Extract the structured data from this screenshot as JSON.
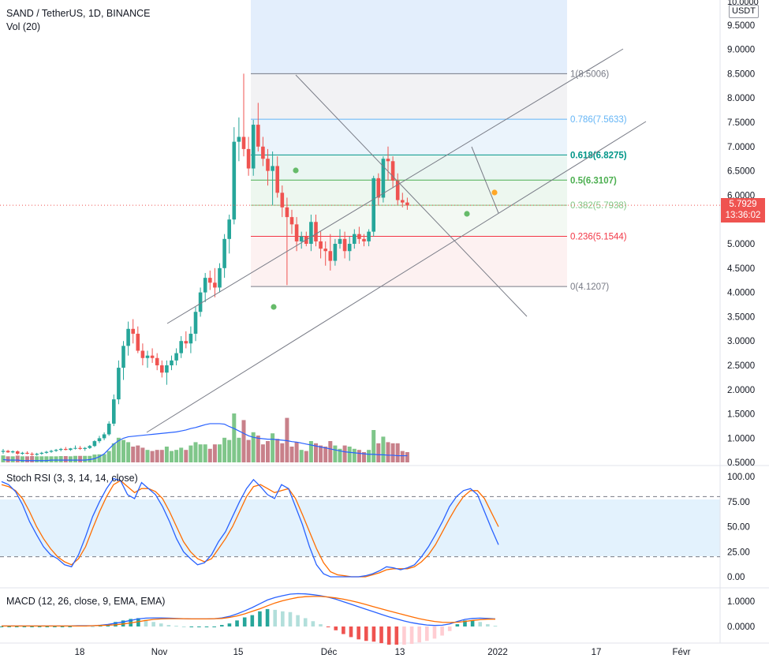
{
  "header": {
    "symbol": "SAND / TetherUS, 1D, BINANCE",
    "volume_indicator": "Vol (20)",
    "stoch_rsi_title": "Stoch RSI (3, 3, 14, 14, close)",
    "macd_title": "MACD (12, 26, close, 9, EMA, EMA)"
  },
  "price_scale": {
    "currency": "USDT",
    "top_label": "10.0000",
    "ticks": [
      "9.5000",
      "9.0000",
      "8.5000",
      "8.0000",
      "7.5000",
      "7.0000",
      "6.5000",
      "6.0000",
      "5.5000",
      "5.0000",
      "4.5000",
      "4.0000",
      "3.5000",
      "3.0000",
      "2.5000",
      "2.0000",
      "1.5000",
      "1.0000",
      "0.5000"
    ],
    "current_price": "5.7929",
    "countdown": "13:36:02"
  },
  "stoch_scale": {
    "ticks": [
      "100.00",
      "75.00",
      "50.00",
      "25.00",
      "0.00"
    ]
  },
  "macd_scale": {
    "ticks": [
      "1.0000",
      "0.0000"
    ]
  },
  "time_axis": {
    "labels": [
      "18",
      "Nov",
      "15",
      "Déc",
      "13",
      "2022",
      "17",
      "Févr"
    ]
  },
  "fibonacci": {
    "levels": [
      {
        "label": "1(8.5006)",
        "price": 8.5006,
        "color": "#787b86"
      },
      {
        "label": "0.786(7.5633)",
        "price": 7.5633,
        "color": "#64b5f6"
      },
      {
        "label": "0.618(6.8275)",
        "price": 6.8275,
        "color": "#009688"
      },
      {
        "label": "0.5(6.3107)",
        "price": 6.3107,
        "color": "#4caf50"
      },
      {
        "label": "0.382(5.7938)",
        "price": 5.7938,
        "color": "#81c784"
      },
      {
        "label": "0.236(5.1544)",
        "price": 5.1544,
        "color": "#f23645"
      },
      {
        "label": "0(4.1207)",
        "price": 4.1207,
        "color": "#787b86"
      }
    ]
  },
  "colors": {
    "up": "#26a69a",
    "down": "#ef5350",
    "vol_up": "#7fc68a",
    "vol_down": "#c8808a",
    "volume_ma": "#2962ff",
    "stoch_k": "#2962ff",
    "stoch_d": "#ff6d00",
    "fib_top": "#bbdefb"
  },
  "chart_data": {
    "type": "candlestick",
    "start_date": "2021-10-05",
    "candles": [
      [
        0.72,
        0.78,
        0.68,
        0.74
      ],
      [
        0.74,
        0.76,
        0.7,
        0.71
      ],
      [
        0.71,
        0.75,
        0.69,
        0.73
      ],
      [
        0.73,
        0.75,
        0.66,
        0.68
      ],
      [
        0.68,
        0.72,
        0.66,
        0.7
      ],
      [
        0.7,
        0.73,
        0.67,
        0.68
      ],
      [
        0.68,
        0.71,
        0.64,
        0.66
      ],
      [
        0.66,
        0.7,
        0.64,
        0.68
      ],
      [
        0.68,
        0.72,
        0.66,
        0.7
      ],
      [
        0.7,
        0.74,
        0.68,
        0.72
      ],
      [
        0.72,
        0.76,
        0.7,
        0.74
      ],
      [
        0.74,
        0.78,
        0.72,
        0.76
      ],
      [
        0.76,
        0.8,
        0.73,
        0.78
      ],
      [
        0.78,
        0.82,
        0.75,
        0.76
      ],
      [
        0.76,
        0.8,
        0.74,
        0.79
      ],
      [
        0.79,
        0.85,
        0.77,
        0.8
      ],
      [
        0.8,
        0.84,
        0.76,
        0.78
      ],
      [
        0.78,
        0.82,
        0.74,
        0.8
      ],
      [
        0.8,
        0.86,
        0.78,
        0.84
      ],
      [
        0.84,
        0.96,
        0.82,
        0.94
      ],
      [
        0.94,
        1.05,
        0.9,
        1.0
      ],
      [
        1.0,
        1.12,
        0.96,
        1.08
      ],
      [
        1.08,
        1.35,
        1.05,
        1.3
      ],
      [
        1.3,
        1.9,
        1.25,
        1.8
      ],
      [
        1.8,
        2.6,
        1.7,
        2.45
      ],
      [
        2.45,
        3.0,
        2.2,
        2.9
      ],
      [
        2.9,
        3.4,
        2.7,
        3.25
      ],
      [
        3.25,
        3.45,
        2.95,
        3.15
      ],
      [
        3.15,
        3.3,
        2.75,
        2.8
      ],
      [
        2.8,
        2.95,
        2.5,
        2.65
      ],
      [
        2.65,
        2.8,
        2.45,
        2.7
      ],
      [
        2.7,
        2.85,
        2.55,
        2.65
      ],
      [
        2.65,
        2.75,
        2.4,
        2.5
      ],
      [
        2.5,
        2.6,
        2.25,
        2.35
      ],
      [
        2.35,
        2.6,
        2.1,
        2.5
      ],
      [
        2.5,
        2.7,
        2.4,
        2.6
      ],
      [
        2.6,
        2.85,
        2.5,
        2.75
      ],
      [
        2.75,
        3.1,
        2.65,
        3.0
      ],
      [
        3.0,
        3.2,
        2.85,
        2.95
      ],
      [
        2.95,
        3.3,
        2.75,
        3.15
      ],
      [
        3.15,
        3.7,
        3.0,
        3.6
      ],
      [
        3.6,
        4.1,
        3.5,
        4.0
      ],
      [
        4.0,
        4.4,
        3.8,
        4.3
      ],
      [
        4.3,
        4.45,
        4.05,
        4.2
      ],
      [
        4.2,
        4.5,
        3.9,
        4.1
      ],
      [
        4.1,
        4.6,
        4.0,
        4.5
      ],
      [
        4.5,
        5.2,
        4.3,
        5.1
      ],
      [
        5.1,
        5.6,
        4.8,
        5.5
      ],
      [
        5.5,
        7.4,
        5.4,
        7.1
      ],
      [
        7.1,
        7.6,
        6.7,
        7.2
      ],
      [
        7.2,
        8.5,
        6.8,
        6.95
      ],
      [
        6.95,
        7.2,
        6.4,
        6.55
      ],
      [
        6.55,
        7.55,
        6.4,
        7.45
      ],
      [
        7.45,
        7.9,
        6.9,
        7.0
      ],
      [
        7.0,
        7.2,
        6.6,
        6.75
      ],
      [
        6.75,
        6.95,
        6.2,
        6.5
      ],
      [
        6.5,
        6.9,
        5.8,
        6.6
      ],
      [
        6.6,
        6.8,
        5.95,
        6.05
      ],
      [
        6.05,
        6.2,
        5.55,
        5.75
      ],
      [
        5.75,
        5.95,
        4.15,
        5.55
      ],
      [
        5.55,
        5.7,
        5.2,
        5.4
      ],
      [
        5.4,
        5.55,
        4.85,
        5.05
      ],
      [
        5.05,
        5.25,
        4.9,
        5.15
      ],
      [
        5.15,
        5.25,
        4.95,
        5.0
      ],
      [
        5.0,
        5.6,
        4.85,
        5.45
      ],
      [
        5.45,
        5.6,
        4.95,
        5.05
      ],
      [
        5.05,
        5.25,
        4.7,
        4.9
      ],
      [
        4.9,
        5.05,
        4.55,
        4.85
      ],
      [
        4.85,
        5.2,
        4.45,
        4.65
      ],
      [
        4.65,
        5.1,
        4.55,
        5.0
      ],
      [
        5.0,
        5.3,
        4.9,
        5.1
      ],
      [
        5.1,
        5.25,
        4.7,
        4.85
      ],
      [
        4.85,
        5.15,
        4.65,
        5.0
      ],
      [
        5.0,
        5.3,
        4.9,
        5.2
      ],
      [
        5.2,
        5.35,
        5.0,
        5.1
      ],
      [
        5.1,
        5.2,
        4.95,
        5.05
      ],
      [
        5.05,
        5.3,
        4.95,
        5.25
      ],
      [
        5.25,
        6.4,
        5.15,
        6.35
      ],
      [
        6.35,
        6.45,
        5.8,
        5.95
      ],
      [
        5.95,
        6.8,
        5.85,
        6.75
      ],
      [
        6.75,
        7.0,
        6.3,
        6.7
      ],
      [
        6.7,
        6.8,
        6.15,
        6.3
      ],
      [
        6.3,
        6.45,
        5.8,
        5.9
      ],
      [
        5.9,
        6.05,
        5.75,
        5.85
      ],
      [
        5.85,
        5.95,
        5.7,
        5.79
      ]
    ],
    "volume_ma": [
      0.56,
      0.55,
      0.55,
      0.55,
      0.54,
      0.54,
      0.54,
      0.54,
      0.54,
      0.54,
      0.55,
      0.55,
      0.55,
      0.55,
      0.55,
      0.55,
      0.55,
      0.55,
      0.56,
      0.58,
      0.62,
      0.68,
      0.78,
      0.88,
      0.95,
      1.0,
      1.03,
      1.04,
      1.05,
      1.06,
      1.07,
      1.08,
      1.09,
      1.1,
      1.11,
      1.12,
      1.13,
      1.15,
      1.17,
      1.2,
      1.22,
      1.25,
      1.28,
      1.3,
      1.3,
      1.3,
      1.29,
      1.24,
      1.2,
      1.15,
      1.1,
      1.05,
      1.02,
      1.0,
      0.99,
      0.98,
      0.98,
      0.97,
      0.96,
      0.95,
      0.93,
      0.92,
      0.9,
      0.88,
      0.86,
      0.84,
      0.82,
      0.8,
      0.78,
      0.76,
      0.74,
      0.72,
      0.71,
      0.7,
      0.69,
      0.68,
      0.67,
      0.67,
      0.66,
      0.66,
      0.65,
      0.65,
      0.64,
      0.64,
      0.64
    ],
    "stoch_k": [
      95,
      92,
      85,
      72,
      55,
      42,
      30,
      22,
      18,
      12,
      10,
      22,
      40,
      60,
      75,
      88,
      98,
      96,
      82,
      78,
      94,
      88,
      82,
      70,
      55,
      38,
      25,
      18,
      12,
      14,
      22,
      35,
      45,
      60,
      75,
      88,
      97,
      90,
      82,
      78,
      92,
      88,
      70,
      52,
      30,
      12,
      3,
      0,
      0,
      0,
      0,
      0,
      1,
      3,
      6,
      10,
      9,
      7,
      9,
      12,
      20,
      30,
      42,
      55,
      70,
      80,
      86,
      88,
      82,
      65,
      48,
      32
    ],
    "stoch_d": [
      92,
      90,
      86,
      78,
      65,
      50,
      38,
      28,
      20,
      15,
      12,
      18,
      30,
      48,
      65,
      80,
      92,
      96,
      90,
      84,
      88,
      88,
      85,
      78,
      65,
      50,
      35,
      25,
      18,
      15,
      18,
      28,
      38,
      50,
      65,
      80,
      90,
      92,
      88,
      84,
      86,
      88,
      78,
      62,
      45,
      28,
      14,
      5,
      2,
      1,
      0,
      0,
      0,
      2,
      4,
      7,
      8,
      8,
      8,
      10,
      15,
      22,
      32,
      45,
      58,
      70,
      80,
      86,
      86,
      78,
      64,
      50
    ],
    "macd": [
      0.02,
      0.02,
      0.02,
      0.02,
      0.02,
      0.02,
      0.02,
      0.02,
      0.02,
      0.02,
      0.03,
      0.03,
      0.03,
      0.05,
      0.08,
      0.13,
      0.18,
      0.24,
      0.3,
      0.33,
      0.34,
      0.34,
      0.33,
      0.32,
      0.31,
      0.3,
      0.3,
      0.3,
      0.31,
      0.34,
      0.4,
      0.5,
      0.62,
      0.75,
      0.9,
      1.05,
      1.15,
      1.22,
      1.28,
      1.3,
      1.29,
      1.26,
      1.22,
      1.16,
      1.08,
      0.98,
      0.88,
      0.78,
      0.68,
      0.58,
      0.48,
      0.38,
      0.3,
      0.22,
      0.15,
      0.1,
      0.06,
      0.04,
      0.05,
      0.1,
      0.2,
      0.28,
      0.32,
      0.33,
      0.32,
      0.3
    ],
    "macd_signal": [
      0.02,
      0.02,
      0.02,
      0.02,
      0.02,
      0.02,
      0.02,
      0.02,
      0.02,
      0.02,
      0.02,
      0.02,
      0.03,
      0.04,
      0.05,
      0.07,
      0.1,
      0.14,
      0.19,
      0.24,
      0.28,
      0.3,
      0.31,
      0.31,
      0.31,
      0.3,
      0.3,
      0.3,
      0.31,
      0.32,
      0.36,
      0.42,
      0.5,
      0.6,
      0.7,
      0.82,
      0.93,
      1.02,
      1.09,
      1.15,
      1.18,
      1.19,
      1.19,
      1.17,
      1.13,
      1.08,
      1.02,
      0.95,
      0.87,
      0.78,
      0.7,
      0.62,
      0.54,
      0.46,
      0.38,
      0.31,
      0.25,
      0.2,
      0.17,
      0.16,
      0.17,
      0.2,
      0.24,
      0.27,
      0.29,
      0.29
    ]
  }
}
